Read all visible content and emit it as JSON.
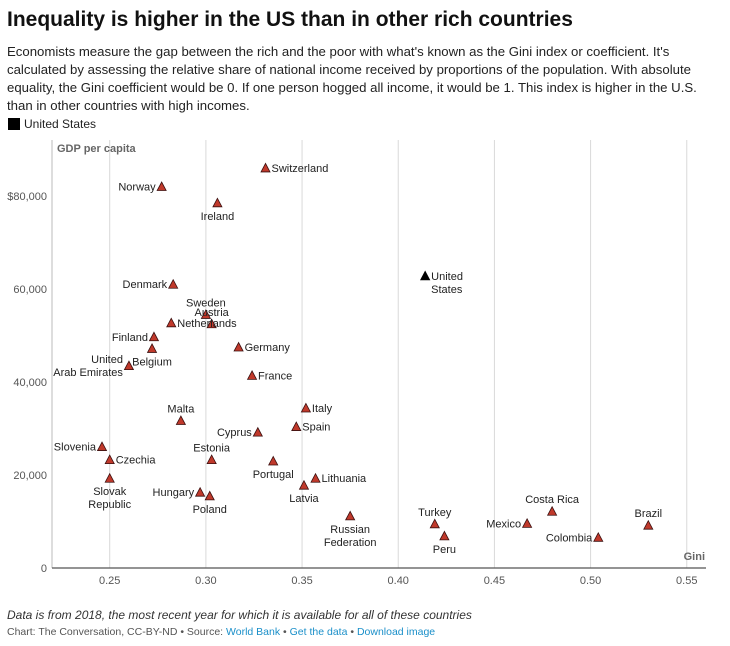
{
  "header": {
    "title": "Inequality is higher in the US than in other rich countries",
    "subtitle": "Economists measure the gap between the rich and the poor with what's known as the Gini index or coefficient. It's calculated by assessing the relative share of national income received by proportions of the population. With absolute equality, the Gini coefficient would be 0. If one person hogged all income, it would be 1. This index is higher in the U.S. than in other countries with high incomes."
  },
  "legend": {
    "label": "United States"
  },
  "footer": {
    "note": "Data is from 2018, the most recent year for which it is available for all of these countries",
    "credit_prefix": "Chart: The Conversation, CC-BY-ND • Source: ",
    "source_link": "World Bank",
    "sep1": " • ",
    "get_data": "Get the data",
    "sep2": " • ",
    "download": "Download image"
  },
  "colors": {
    "highlight": "#000000",
    "other": "#c0392b",
    "other_stroke": "#3a1010",
    "grid": "#d9d9d9"
  },
  "chart_data": {
    "type": "scatter",
    "xlabel": "Gini",
    "ylabel": "GDP per capita",
    "xlim": [
      0.22,
      0.56
    ],
    "ylim": [
      0,
      92000
    ],
    "x_ticks": [
      0.25,
      0.3,
      0.35,
      0.4,
      0.45,
      0.5,
      0.55
    ],
    "x_tick_labels": [
      "0.25",
      "0.30",
      "0.35",
      "0.40",
      "0.45",
      "0.50",
      "0.55"
    ],
    "y_ticks": [
      0,
      20000,
      40000,
      60000,
      80000
    ],
    "y_tick_labels": [
      "0",
      "20,000",
      "40,000",
      "60,000",
      "$80,000"
    ],
    "grid": "vertical",
    "points": [
      {
        "label": [
          "Switzerland"
        ],
        "x": 0.331,
        "y": 86000,
        "pos": "right"
      },
      {
        "label": [
          "Norway"
        ],
        "x": 0.277,
        "y": 82000,
        "pos": "left"
      },
      {
        "label": [
          "Ireland"
        ],
        "x": 0.306,
        "y": 78500,
        "pos": "below"
      },
      {
        "label": [
          "United",
          "States"
        ],
        "x": 0.414,
        "y": 62800,
        "highlight": true,
        "pos": "right"
      },
      {
        "label": [
          "Denmark"
        ],
        "x": 0.283,
        "y": 61000,
        "pos": "left"
      },
      {
        "label": [
          "Sweden"
        ],
        "x": 0.3,
        "y": 54500,
        "pos": "above"
      },
      {
        "label": [
          "Austria"
        ],
        "x": 0.303,
        "y": 52500,
        "pos": "above"
      },
      {
        "label": [
          "Netherlands"
        ],
        "x": 0.282,
        "y": 52700,
        "pos": "right"
      },
      {
        "label": [
          "Finland"
        ],
        "x": 0.273,
        "y": 49700,
        "pos": "left"
      },
      {
        "label": [
          "Belgium"
        ],
        "x": 0.272,
        "y": 47200,
        "pos": "below"
      },
      {
        "label": [
          "Germany"
        ],
        "x": 0.317,
        "y": 47500,
        "pos": "right"
      },
      {
        "label": [
          "United",
          "Arab Emirates"
        ],
        "x": 0.26,
        "y": 43500,
        "pos": "left"
      },
      {
        "label": [
          "France"
        ],
        "x": 0.324,
        "y": 41400,
        "pos": "right"
      },
      {
        "label": [
          "Italy"
        ],
        "x": 0.352,
        "y": 34400,
        "pos": "right"
      },
      {
        "label": [
          "Malta"
        ],
        "x": 0.287,
        "y": 31700,
        "pos": "above"
      },
      {
        "label": [
          "Spain"
        ],
        "x": 0.347,
        "y": 30400,
        "pos": "right"
      },
      {
        "label": [
          "Cyprus"
        ],
        "x": 0.327,
        "y": 29200,
        "pos": "left"
      },
      {
        "label": [
          "Slovenia"
        ],
        "x": 0.246,
        "y": 26100,
        "pos": "left"
      },
      {
        "label": [
          "Czechia"
        ],
        "x": 0.25,
        "y": 23300,
        "pos": "right"
      },
      {
        "label": [
          "Estonia"
        ],
        "x": 0.303,
        "y": 23300,
        "pos": "above"
      },
      {
        "label": [
          "Portugal"
        ],
        "x": 0.335,
        "y": 23000,
        "pos": "below"
      },
      {
        "label": [
          "Lithuania"
        ],
        "x": 0.357,
        "y": 19300,
        "pos": "right"
      },
      {
        "label": [
          "Slovak",
          "Republic"
        ],
        "x": 0.25,
        "y": 19300,
        "pos": "below"
      },
      {
        "label": [
          "Latvia"
        ],
        "x": 0.351,
        "y": 17800,
        "pos": "below"
      },
      {
        "label": [
          "Hungary"
        ],
        "x": 0.297,
        "y": 16300,
        "pos": "left"
      },
      {
        "label": [
          "Poland"
        ],
        "x": 0.302,
        "y": 15500,
        "pos": "below"
      },
      {
        "label": [
          "Costa Rica"
        ],
        "x": 0.48,
        "y": 12200,
        "pos": "above"
      },
      {
        "label": [
          "Russian",
          "Federation"
        ],
        "x": 0.375,
        "y": 11200,
        "pos": "below"
      },
      {
        "label": [
          "Turkey"
        ],
        "x": 0.419,
        "y": 9500,
        "pos": "above"
      },
      {
        "label": [
          "Brazil"
        ],
        "x": 0.53,
        "y": 9200,
        "pos": "above"
      },
      {
        "label": [
          "Mexico"
        ],
        "x": 0.467,
        "y": 9600,
        "pos": "left"
      },
      {
        "label": [
          "Peru"
        ],
        "x": 0.424,
        "y": 6900,
        "pos": "below"
      },
      {
        "label": [
          "Colombia"
        ],
        "x": 0.504,
        "y": 6600,
        "pos": "left"
      }
    ]
  }
}
